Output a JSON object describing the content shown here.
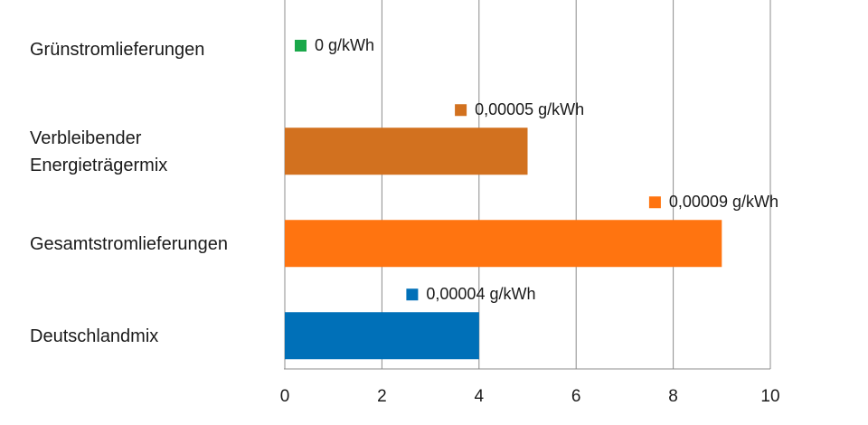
{
  "chart_data": {
    "type": "bar",
    "orientation": "horizontal",
    "categories": [
      "Grünstromlieferungen",
      "Verbleibender\nEnergieträgermix",
      "Gesamtstromlieferungen",
      "Deutschlandmix"
    ],
    "values": [
      0,
      5,
      9,
      4
    ],
    "data_labels": [
      "0 g/kWh",
      "0,00005 g/kWh",
      "0,00009 g/kWh",
      "0,00004 g/kWh"
    ],
    "colors": [
      "#1aa84a",
      "#d2711f",
      "#ff7410",
      "#0070b8"
    ],
    "xlim": [
      0,
      10
    ],
    "x_ticks": [
      0,
      2,
      4,
      6,
      8,
      10
    ],
    "grid": true,
    "title": "",
    "xlabel": "",
    "ylabel": ""
  }
}
